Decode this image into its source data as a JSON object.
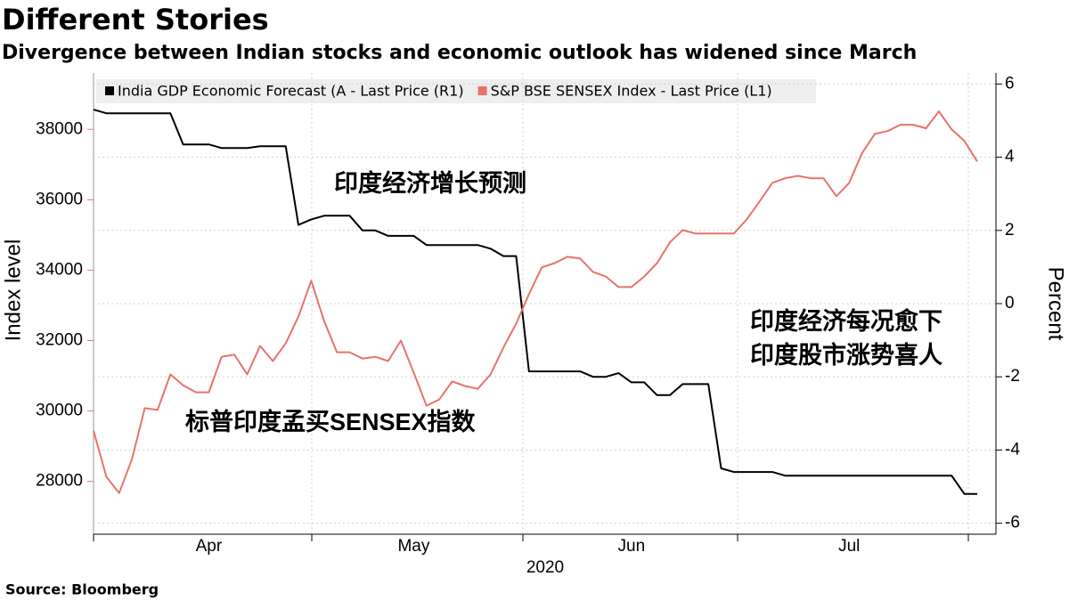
{
  "chart_data": {
    "type": "line",
    "title": "Different Stories",
    "subtitle": "Divergence between Indian stocks and economic outlook has widened since March",
    "ylabel": "Index level",
    "y2label": "Percent",
    "xlabel": "2020",
    "source": "Source: Bloomberg",
    "annotations": [
      "印度经济增长预测",
      "印度经济每况愈下",
      "印度股市涨势喜人",
      "标普印度孟买SENSEX指数"
    ],
    "categories": [
      null,
      null,
      null,
      null,
      null,
      null,
      null,
      null,
      null,
      "Apr",
      null,
      null,
      null,
      null,
      null,
      null,
      null,
      null,
      null,
      null,
      null,
      null,
      null,
      null,
      null,
      "May",
      null,
      null,
      null,
      null,
      null,
      null,
      null,
      null,
      null,
      null,
      null,
      null,
      null,
      null,
      null,
      null,
      "Jun",
      null,
      null,
      null,
      null,
      null,
      null,
      null,
      null,
      null,
      null,
      null,
      null,
      null,
      null,
      null,
      null,
      "Jul",
      null,
      null,
      null,
      null,
      null,
      null,
      null,
      null,
      null,
      null
    ],
    "ylim": [
      26500,
      39600
    ],
    "yticks": [
      28000,
      30000,
      32000,
      34000,
      36000,
      38000
    ],
    "y2lim": [
      -6.3,
      6.3
    ],
    "y2ticks": [
      -6,
      -4,
      -2,
      0,
      2,
      4,
      6
    ],
    "grid": "y2",
    "legend": "top-left",
    "series": [
      {
        "name": "India GDP Economic Forecast (A - Last Price (R1)",
        "color": "#000000",
        "axis": "y2",
        "values": [
          5.3,
          5.2,
          5.2,
          5.2,
          5.2,
          5.2,
          5.2,
          4.35,
          4.35,
          4.35,
          4.25,
          4.25,
          4.25,
          4.3,
          4.3,
          4.3,
          2.15,
          2.3,
          2.4,
          2.4,
          2.4,
          2.0,
          2.0,
          1.85,
          1.85,
          1.85,
          1.6,
          1.6,
          1.6,
          1.6,
          1.6,
          1.5,
          1.3,
          1.3,
          -1.85,
          -1.85,
          -1.85,
          -1.85,
          -1.85,
          -2.0,
          -2.0,
          -1.9,
          -2.15,
          -2.15,
          -2.5,
          -2.5,
          -2.2,
          -2.2,
          -2.2,
          -4.5,
          -4.6,
          -4.6,
          -4.6,
          -4.6,
          -4.7,
          -4.7,
          -4.7,
          -4.7,
          -4.7,
          -4.7,
          -4.7,
          -4.7,
          -4.7,
          -4.7,
          -4.7,
          -4.7,
          -4.7,
          -4.7,
          -5.2,
          -5.2
        ]
      },
      {
        "name": "S&P BSE SENSEX Index - Last Price (L1)",
        "color": "#e8736a",
        "values": [
          29440,
          28130,
          27670,
          28630,
          30080,
          30030,
          31040,
          30730,
          30530,
          30530,
          31540,
          31600,
          31040,
          31850,
          31420,
          31920,
          32680,
          33700,
          32560,
          31670,
          31670,
          31490,
          31540,
          31420,
          32000,
          31090,
          30150,
          30330,
          30840,
          30710,
          30630,
          31040,
          31800,
          32480,
          33320,
          34080,
          34200,
          34380,
          34330,
          33950,
          33820,
          33520,
          33520,
          33820,
          34200,
          34790,
          35140,
          35040,
          35040,
          35040,
          35040,
          35440,
          35950,
          36480,
          36610,
          36680,
          36610,
          36610,
          36100,
          36480,
          37320,
          37870,
          37950,
          38130,
          38130,
          38030,
          38510,
          38000,
          37670,
          37090
        ]
      }
    ]
  }
}
